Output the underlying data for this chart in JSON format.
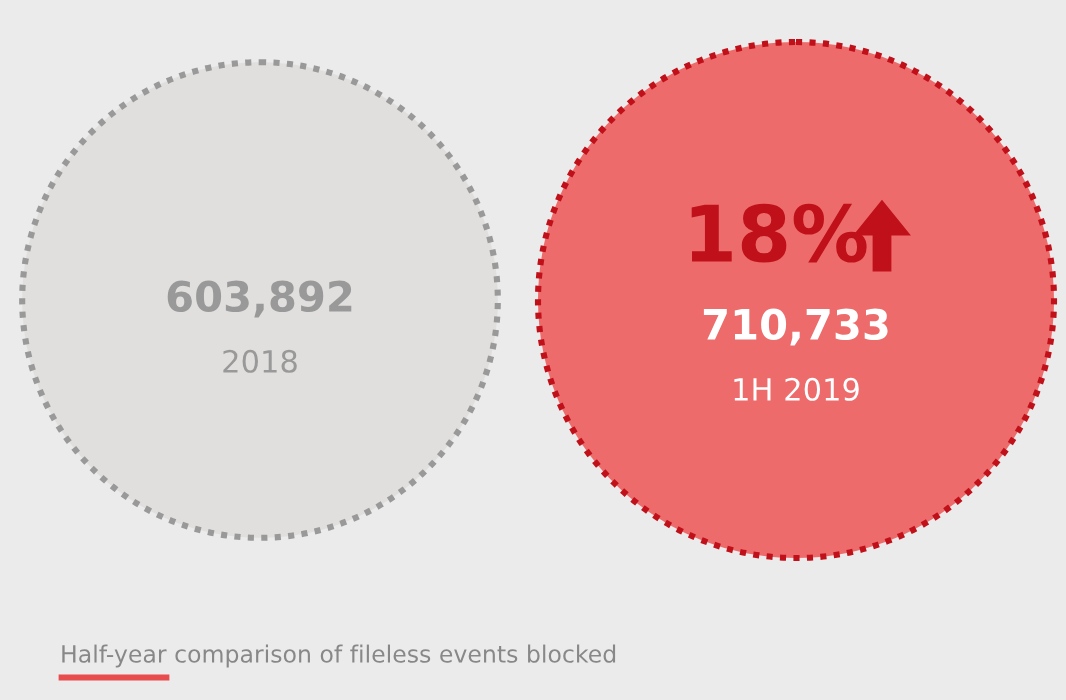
{
  "chart_data": {
    "type": "other",
    "categories": [
      "2018",
      "1H 2019"
    ],
    "values": [
      603892,
      710733
    ],
    "value_labels": [
      "603,892",
      "710,733"
    ],
    "colors": [
      "#e0dfdd",
      "#ee6b6b"
    ],
    "annotations": [
      "18%",
      "Half-year comparison of fileless events blocked"
    ]
  }
}
